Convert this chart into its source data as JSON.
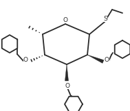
{
  "bg_color": "#ffffff",
  "line_color": "#2a2a2a",
  "lw": 1.3,
  "figsize": [
    1.89,
    1.62
  ],
  "dpi": 100,
  "xlim": [
    0,
    189
  ],
  "ylim": [
    0,
    162
  ]
}
